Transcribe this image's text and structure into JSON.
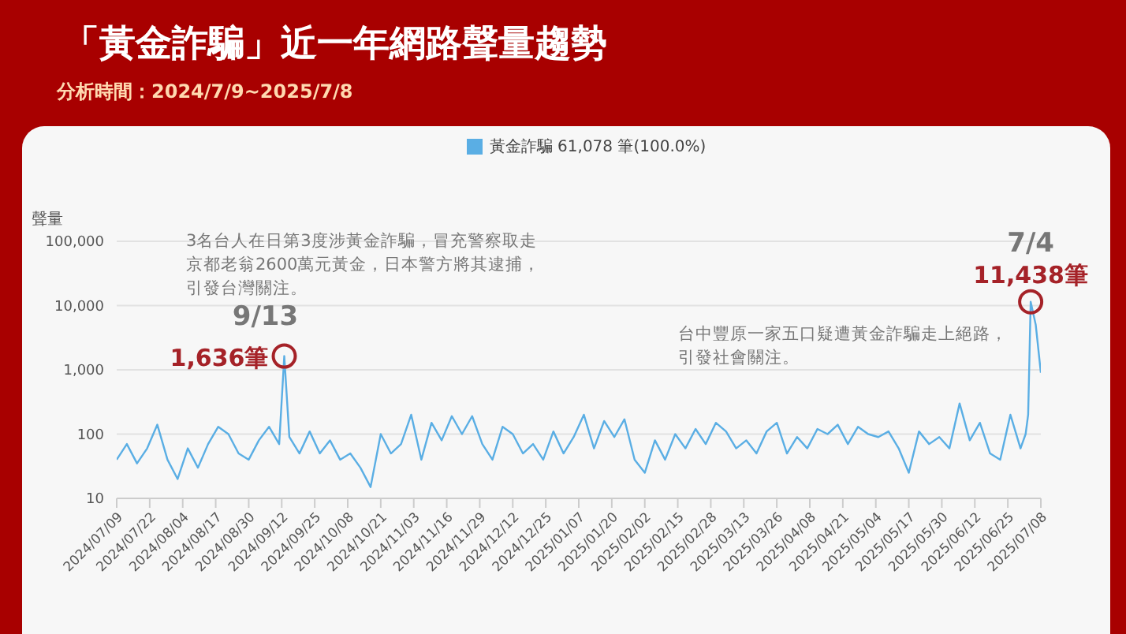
{
  "chart_data": {
    "type": "line",
    "title": "「黃金詐騙」近一年網路聲量趨勢",
    "subtitle": "分析時間：2024/7/9~2025/7/8",
    "ylabel": "聲量",
    "legend": "top",
    "grid": "y",
    "log": "y",
    "marker": "none",
    "line_style": "solid",
    "x": [
      "2024-07-09",
      "2024-07-13",
      "2024-07-17",
      "2024-07-21",
      "2024-07-25",
      "2024-07-29",
      "2024-08-02",
      "2024-08-06",
      "2024-08-10",
      "2024-08-14",
      "2024-08-18",
      "2024-08-22",
      "2024-08-26",
      "2024-08-30",
      "2024-09-03",
      "2024-09-07",
      "2024-09-11",
      "2024-09-13",
      "2024-09-15",
      "2024-09-19",
      "2024-09-23",
      "2024-09-27",
      "2024-10-01",
      "2024-10-05",
      "2024-10-09",
      "2024-10-13",
      "2024-10-17",
      "2024-10-21",
      "2024-10-25",
      "2024-10-29",
      "2024-11-02",
      "2024-11-06",
      "2024-11-10",
      "2024-11-14",
      "2024-11-18",
      "2024-11-22",
      "2024-11-26",
      "2024-11-30",
      "2024-12-04",
      "2024-12-08",
      "2024-12-12",
      "2024-12-16",
      "2024-12-20",
      "2024-12-24",
      "2024-12-28",
      "2025-01-01",
      "2025-01-05",
      "2025-01-09",
      "2025-01-13",
      "2025-01-17",
      "2025-01-21",
      "2025-01-25",
      "2025-01-29",
      "2025-02-02",
      "2025-02-06",
      "2025-02-10",
      "2025-02-14",
      "2025-02-18",
      "2025-02-22",
      "2025-02-26",
      "2025-03-02",
      "2025-03-06",
      "2025-03-10",
      "2025-03-14",
      "2025-03-18",
      "2025-03-22",
      "2025-03-26",
      "2025-03-30",
      "2025-04-03",
      "2025-04-07",
      "2025-04-11",
      "2025-04-15",
      "2025-04-19",
      "2025-04-23",
      "2025-04-27",
      "2025-05-01",
      "2025-05-05",
      "2025-05-09",
      "2025-05-13",
      "2025-05-17",
      "2025-05-21",
      "2025-05-25",
      "2025-05-29",
      "2025-06-02",
      "2025-06-06",
      "2025-06-10",
      "2025-06-14",
      "2025-06-18",
      "2025-06-22",
      "2025-06-26",
      "2025-06-30",
      "2025-07-02",
      "2025-07-03",
      "2025-07-04",
      "2025-07-06",
      "2025-07-08"
    ],
    "series": [
      {
        "name": "黃金詐騙 61,078 筆(100.0%)",
        "color": "#5aaee4",
        "values": [
          40,
          70,
          35,
          60,
          140,
          40,
          20,
          60,
          30,
          70,
          130,
          100,
          50,
          40,
          80,
          130,
          70,
          1636,
          90,
          50,
          110,
          50,
          80,
          40,
          50,
          30,
          15,
          100,
          50,
          70,
          200,
          40,
          150,
          80,
          190,
          100,
          190,
          70,
          40,
          130,
          100,
          50,
          70,
          40,
          110,
          50,
          90,
          200,
          60,
          160,
          90,
          170,
          40,
          25,
          80,
          40,
          100,
          60,
          120,
          70,
          150,
          110,
          60,
          80,
          50,
          110,
          150,
          50,
          90,
          60,
          120,
          100,
          140,
          70,
          130,
          100,
          90,
          110,
          60,
          25,
          110,
          70,
          90,
          60,
          300,
          80,
          150,
          50,
          40,
          200,
          60,
          100,
          200,
          11438,
          5000,
          900
        ]
      }
    ],
    "xlim": [
      "2024-07-09",
      "2025-07-08"
    ],
    "xticks": [
      {
        "value": "2024-07-09",
        "label": "2024/07/09"
      },
      {
        "value": "2024-07-22",
        "label": "2024/07/22"
      },
      {
        "value": "2024-08-04",
        "label": "2024/08/04"
      },
      {
        "value": "2024-08-17",
        "label": "2024/08/17"
      },
      {
        "value": "2024-08-30",
        "label": "2024/08/30"
      },
      {
        "value": "2024-09-12",
        "label": "2024/09/12"
      },
      {
        "value": "2024-09-25",
        "label": "2024/09/25"
      },
      {
        "value": "2024-10-08",
        "label": "2024/10/08"
      },
      {
        "value": "2024-10-21",
        "label": "2024/10/21"
      },
      {
        "value": "2024-11-03",
        "label": "2024/11/03"
      },
      {
        "value": "2024-11-16",
        "label": "2024/11/16"
      },
      {
        "value": "2024-11-29",
        "label": "2024/11/29"
      },
      {
        "value": "2024-12-12",
        "label": "2024/12/12"
      },
      {
        "value": "2024-12-25",
        "label": "2024/12/25"
      },
      {
        "value": "2025-01-07",
        "label": "2025/01/07"
      },
      {
        "value": "2025-01-20",
        "label": "2025/01/20"
      },
      {
        "value": "2025-02-02",
        "label": "2025/02/02"
      },
      {
        "value": "2025-02-15",
        "label": "2025/02/15"
      },
      {
        "value": "2025-02-28",
        "label": "2025/02/28"
      },
      {
        "value": "2025-03-13",
        "label": "2025/03/13"
      },
      {
        "value": "2025-03-26",
        "label": "2025/03/26"
      },
      {
        "value": "2025-04-08",
        "label": "2025/04/08"
      },
      {
        "value": "2025-04-21",
        "label": "2025/04/21"
      },
      {
        "value": "2025-05-04",
        "label": "2025/05/04"
      },
      {
        "value": "2025-05-17",
        "label": "2025/05/17"
      },
      {
        "value": "2025-05-30",
        "label": "2025/05/30"
      },
      {
        "value": "2025-06-12",
        "label": "2025/06/12"
      },
      {
        "value": "2025-06-25",
        "label": "2025/06/25"
      },
      {
        "value": "2025-07-08",
        "label": "2025/07/08"
      }
    ],
    "ylim": [
      10,
      100000
    ],
    "yticks": [
      10,
      100,
      {
        "value": 1000,
        "label": "1,000"
      },
      {
        "value": 10000,
        "label": "10,000"
      },
      {
        "value": 100000,
        "label": "100,000"
      }
    ],
    "annotations": [
      "3名台人在日第3度涉黃金詐騙，冒充警察取走京都老翁2600萬元黃金，日本警方將其逮捕，引發台灣關注。",
      "台中豐原一家五口疑遭黃金詐騙走上絕路，引發社會關注。",
      {
        "text": "9/13",
        "x": "2024-09-13",
        "y": 1636
      },
      {
        "text": "1,636筆",
        "x": "2024-09-13",
        "y": 1636
      },
      {
        "text": "7/4",
        "x": "2025-07-04",
        "y": 11438
      },
      {
        "text": "11,438筆",
        "x": "2025-07-04",
        "y": 11438
      }
    ]
  }
}
